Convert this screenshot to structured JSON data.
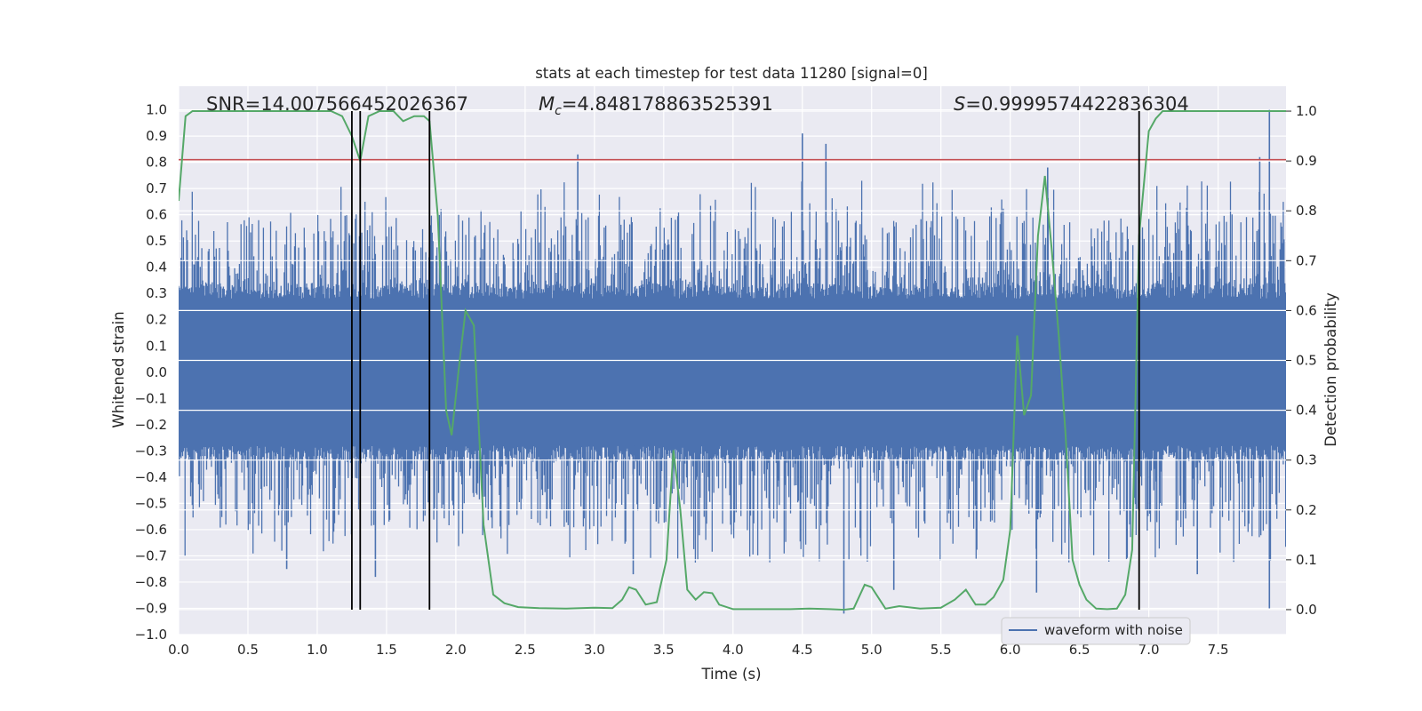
{
  "chart_data": {
    "type": "line",
    "title": "stats at each timestep for test data 11280 [signal=0]",
    "xlabel": "Time (s)",
    "ylabel_left": "Whitened strain",
    "ylabel_right": "Detection probability",
    "xlim": [
      0.0,
      7.99
    ],
    "ylim_left": [
      -1.0,
      1.09
    ],
    "ylim_right": [
      -0.05,
      1.05
    ],
    "x_ticks": [
      "0.0",
      "0.5",
      "1.0",
      "1.5",
      "2.0",
      "2.5",
      "3.0",
      "3.5",
      "4.0",
      "4.5",
      "5.0",
      "5.5",
      "6.0",
      "6.5",
      "7.0",
      "7.5"
    ],
    "y_ticks_left": [
      "1.0",
      "0.9",
      "0.8",
      "0.7",
      "0.6",
      "0.5",
      "0.4",
      "0.3",
      "0.2",
      "0.1",
      "0.0",
      "−0.1",
      "−0.2",
      "−0.3",
      "−0.4",
      "−0.5",
      "−0.6",
      "−0.7",
      "−0.8",
      "−0.9",
      "−1.0"
    ],
    "y_ticks_right": [
      "1.0",
      "0.9",
      "0.8",
      "0.7",
      "0.6",
      "0.5",
      "0.4",
      "0.3",
      "0.2",
      "0.1",
      "0.0"
    ],
    "annotations": {
      "snr": "SNR=14.007566452026367",
      "mc_symbol": "M",
      "mc_sub": "c",
      "mc_value": "=4.848178863525391",
      "s_symbol": "S",
      "s_value": "=0.9999574422836304"
    },
    "legend": {
      "label": "waveform with noise",
      "location": "lower-right"
    },
    "threshold_line": {
      "value": 0.81,
      "axis": "left",
      "color": "#c44e52"
    },
    "vertical_lines": [
      1.25,
      1.31,
      1.81,
      6.93
    ],
    "waveform": {
      "name": "waveform with noise",
      "color": "#4c72b0",
      "core_amplitude": 0.28,
      "peaks": [
        {
          "t": 2.88,
          "v": 0.83
        },
        {
          "t": 4.5,
          "v": 0.91
        },
        {
          "t": 4.67,
          "v": 0.87
        },
        {
          "t": 7.87,
          "v": 1.0
        },
        {
          "t": 7.8,
          "v": 0.82
        },
        {
          "t": 6.27,
          "v": 0.78
        },
        {
          "t": 0.78,
          "v": -0.75
        },
        {
          "t": 1.42,
          "v": -0.78
        },
        {
          "t": 3.28,
          "v": -0.77
        },
        {
          "t": 6.19,
          "v": -0.84
        },
        {
          "t": 7.35,
          "v": -0.77
        },
        {
          "t": 7.87,
          "v": -0.9
        },
        {
          "t": 4.8,
          "v": -0.92
        },
        {
          "t": 5.16,
          "v": -0.83
        }
      ]
    },
    "detection_probability": {
      "color": "#55a868",
      "x": [
        0.0,
        0.05,
        0.1,
        0.2,
        0.4,
        0.6,
        0.8,
        1.0,
        1.1,
        1.18,
        1.25,
        1.31,
        1.37,
        1.45,
        1.55,
        1.62,
        1.7,
        1.77,
        1.81,
        1.87,
        1.93,
        1.97,
        2.02,
        2.07,
        2.13,
        2.2,
        2.27,
        2.35,
        2.45,
        2.6,
        2.8,
        3.0,
        3.13,
        3.2,
        3.25,
        3.3,
        3.37,
        3.45,
        3.52,
        3.57,
        3.62,
        3.67,
        3.73,
        3.79,
        3.85,
        3.9,
        4.0,
        4.2,
        4.4,
        4.55,
        4.7,
        4.8,
        4.87,
        4.95,
        5.0,
        5.1,
        5.2,
        5.35,
        5.5,
        5.6,
        5.68,
        5.75,
        5.82,
        5.88,
        5.95,
        6.0,
        6.05,
        6.1,
        6.15,
        6.2,
        6.25,
        6.3,
        6.35,
        6.4,
        6.45,
        6.5,
        6.55,
        6.62,
        6.7,
        6.77,
        6.83,
        6.88,
        6.93,
        7.0,
        7.05,
        7.1,
        7.2,
        7.35,
        7.5,
        7.7,
        7.99
      ],
      "y": [
        0.82,
        0.99,
        1.0,
        1.0,
        1.0,
        1.0,
        1.0,
        1.0,
        1.0,
        0.99,
        0.95,
        0.9,
        0.99,
        1.0,
        1.0,
        0.98,
        0.99,
        0.99,
        0.98,
        0.79,
        0.4,
        0.35,
        0.48,
        0.6,
        0.57,
        0.17,
        0.03,
        0.013,
        0.005,
        0.003,
        0.002,
        0.004,
        0.003,
        0.02,
        0.045,
        0.04,
        0.01,
        0.015,
        0.1,
        0.32,
        0.2,
        0.04,
        0.02,
        0.035,
        0.033,
        0.01,
        0.001,
        0.001,
        0.001,
        0.002,
        0.001,
        0.0,
        0.002,
        0.05,
        0.045,
        0.002,
        0.007,
        0.002,
        0.004,
        0.02,
        0.04,
        0.01,
        0.01,
        0.025,
        0.06,
        0.16,
        0.55,
        0.39,
        0.43,
        0.75,
        0.87,
        0.72,
        0.55,
        0.35,
        0.1,
        0.05,
        0.02,
        0.002,
        0.001,
        0.002,
        0.03,
        0.12,
        0.75,
        0.96,
        0.985,
        1.0,
        1.0,
        1.0,
        1.0,
        1.0,
        1.0
      ]
    }
  }
}
